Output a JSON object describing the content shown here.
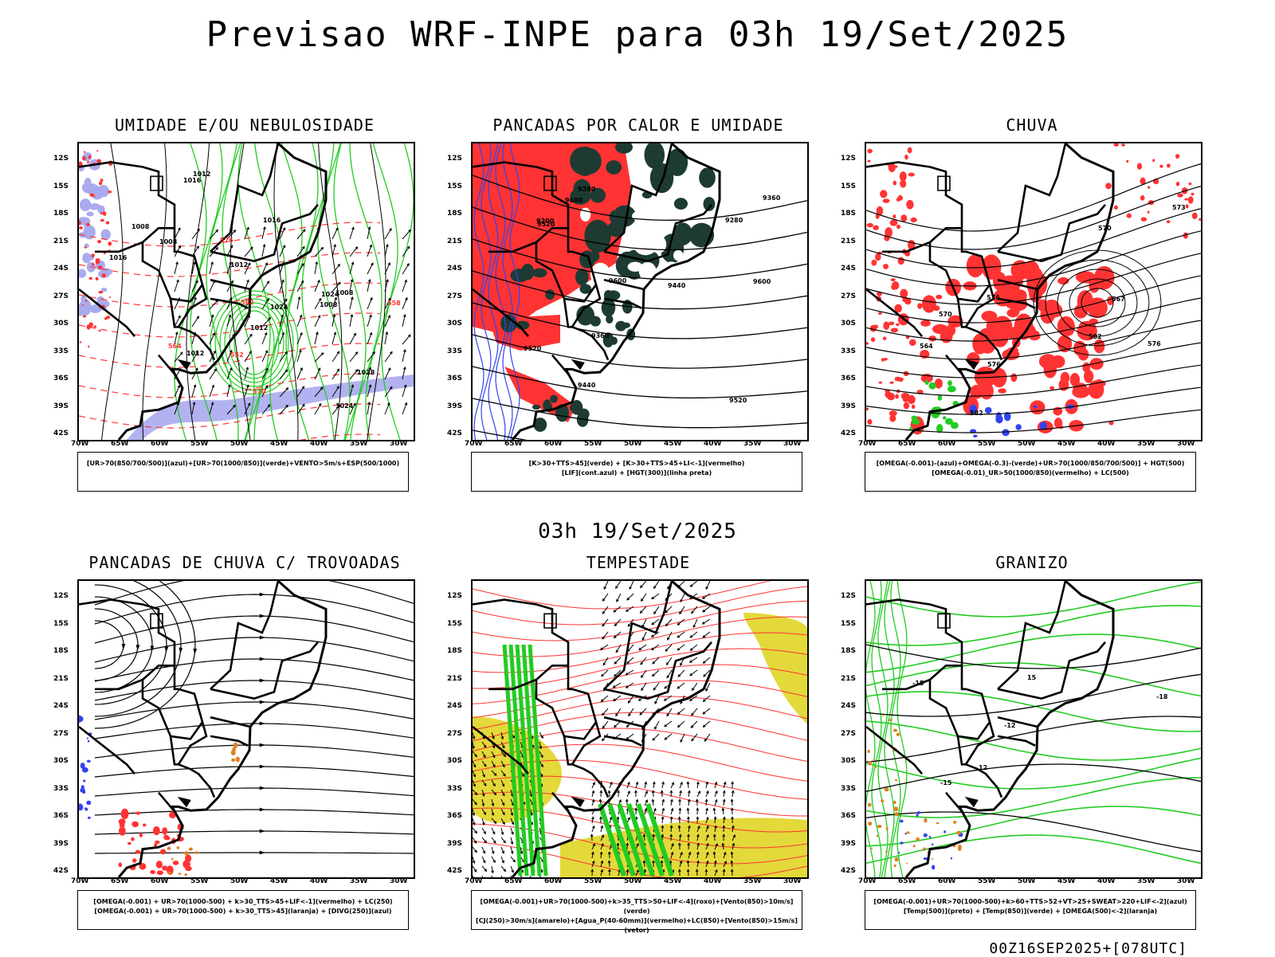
{
  "main_title": "Previsao WRF-INPE  para 03h 19/Set/2025",
  "mid_title": "03h 19/Set/2025",
  "footer": "00Z16SEP2025+[078UTC]",
  "axes": {
    "lat_labels": [
      "12S",
      "15S",
      "18S",
      "21S",
      "24S",
      "27S",
      "30S",
      "33S",
      "36S",
      "39S",
      "42S"
    ],
    "lon_labels": [
      "70W",
      "65W",
      "60W",
      "55W",
      "50W",
      "45W",
      "40W",
      "35W",
      "30W"
    ]
  },
  "panels": [
    {
      "title": "UMIDADE E/OU NEBULOSIDADE",
      "legend": [
        "[UR>70(850/700/500)](azul)+[UR>70(1000/850)](verde)+VENTO>5m/s+ESP(500/1000)"
      ],
      "contour_labels": [
        "1008",
        "1008",
        "1012",
        "1016",
        "1012",
        "1016",
        "1016",
        "1024",
        "1028",
        "1008",
        "1012",
        "1024",
        "1024",
        "1008",
        "1012",
        "570",
        "576",
        "582",
        "564",
        "552",
        "558"
      ]
    },
    {
      "title": "PANCADAS POR CALOR E UMIDADE",
      "legend": [
        "[K>30+TTS>45](verde) + [K>30+TTS>45+LI<-1](vermelho)",
        "[LIF](cont.azul) + [HGT(300)](linha preta)"
      ],
      "contour_labels": [
        "9600",
        "9600",
        "9600",
        "9520",
        "9520",
        "9520",
        "9440",
        "9440",
        "9360",
        "9360",
        "9280",
        "9280",
        "9200"
      ]
    },
    {
      "title": "CHUVA",
      "legend": [
        "[OMEGA(-0.001)-(azul)+OMEGA(-0.3)-(verde)+UR>70(1000/850/700/500)] + HGT(500)",
        "[OMEGA(-0.01)_UR>50(1000/850)(vermelho) + LC(500)"
      ],
      "contour_labels": [
        "582",
        "582",
        "576",
        "576",
        "576",
        "570",
        "570",
        "573",
        "567",
        "564"
      ]
    },
    {
      "title": "PANCADAS DE CHUVA C/ TROVOADAS",
      "legend": [
        "[OMEGA(-0.001) + UR>70(1000-500) + k>30_TTS>45+LIF<-1](vermelho) + LC(250)",
        "[OMEGA(-0.001) + UR>70(1000-500) + k>30_TTS>45](laranja) + [DIVG(250)](azul)"
      ],
      "contour_labels": []
    },
    {
      "title": "TEMPESTADE",
      "legend": [
        "[OMEGA(-0.001)+UR>70(1000-500)+k>35_TTS>50+LIF<-4](roxo)+[Vento(850)>10m/s](verde)",
        "[CJ(250)>30m/s](amarelo)+[Agua_P(40-60mm)](vermelho)+LC(850)+[Vento(850)>15m/s](vetor)"
      ],
      "contour_labels": []
    },
    {
      "title": "GRANIZO",
      "legend": [
        "[OMEGA(-0.001)+UR>70(1000-500)+k>60+TTS>52+VT>25+SWEAT>220+LIF<-2](azul)",
        "[Temp(500)](preto) + [Temp(850)](verde) + [OMEGA(500)<-2](laranja)"
      ],
      "contour_labels": [
        "-12",
        "-15",
        "-15",
        "-18",
        "12",
        "15"
      ]
    }
  ],
  "colors": {
    "map_line": "#000000",
    "green": "#22cc22",
    "red": "#ff3333",
    "blue": "#3344ee",
    "lavender": "#aaaaee",
    "darkgreen": "#1d3b33",
    "yellow": "#e3d93a",
    "orange": "#e08020"
  }
}
